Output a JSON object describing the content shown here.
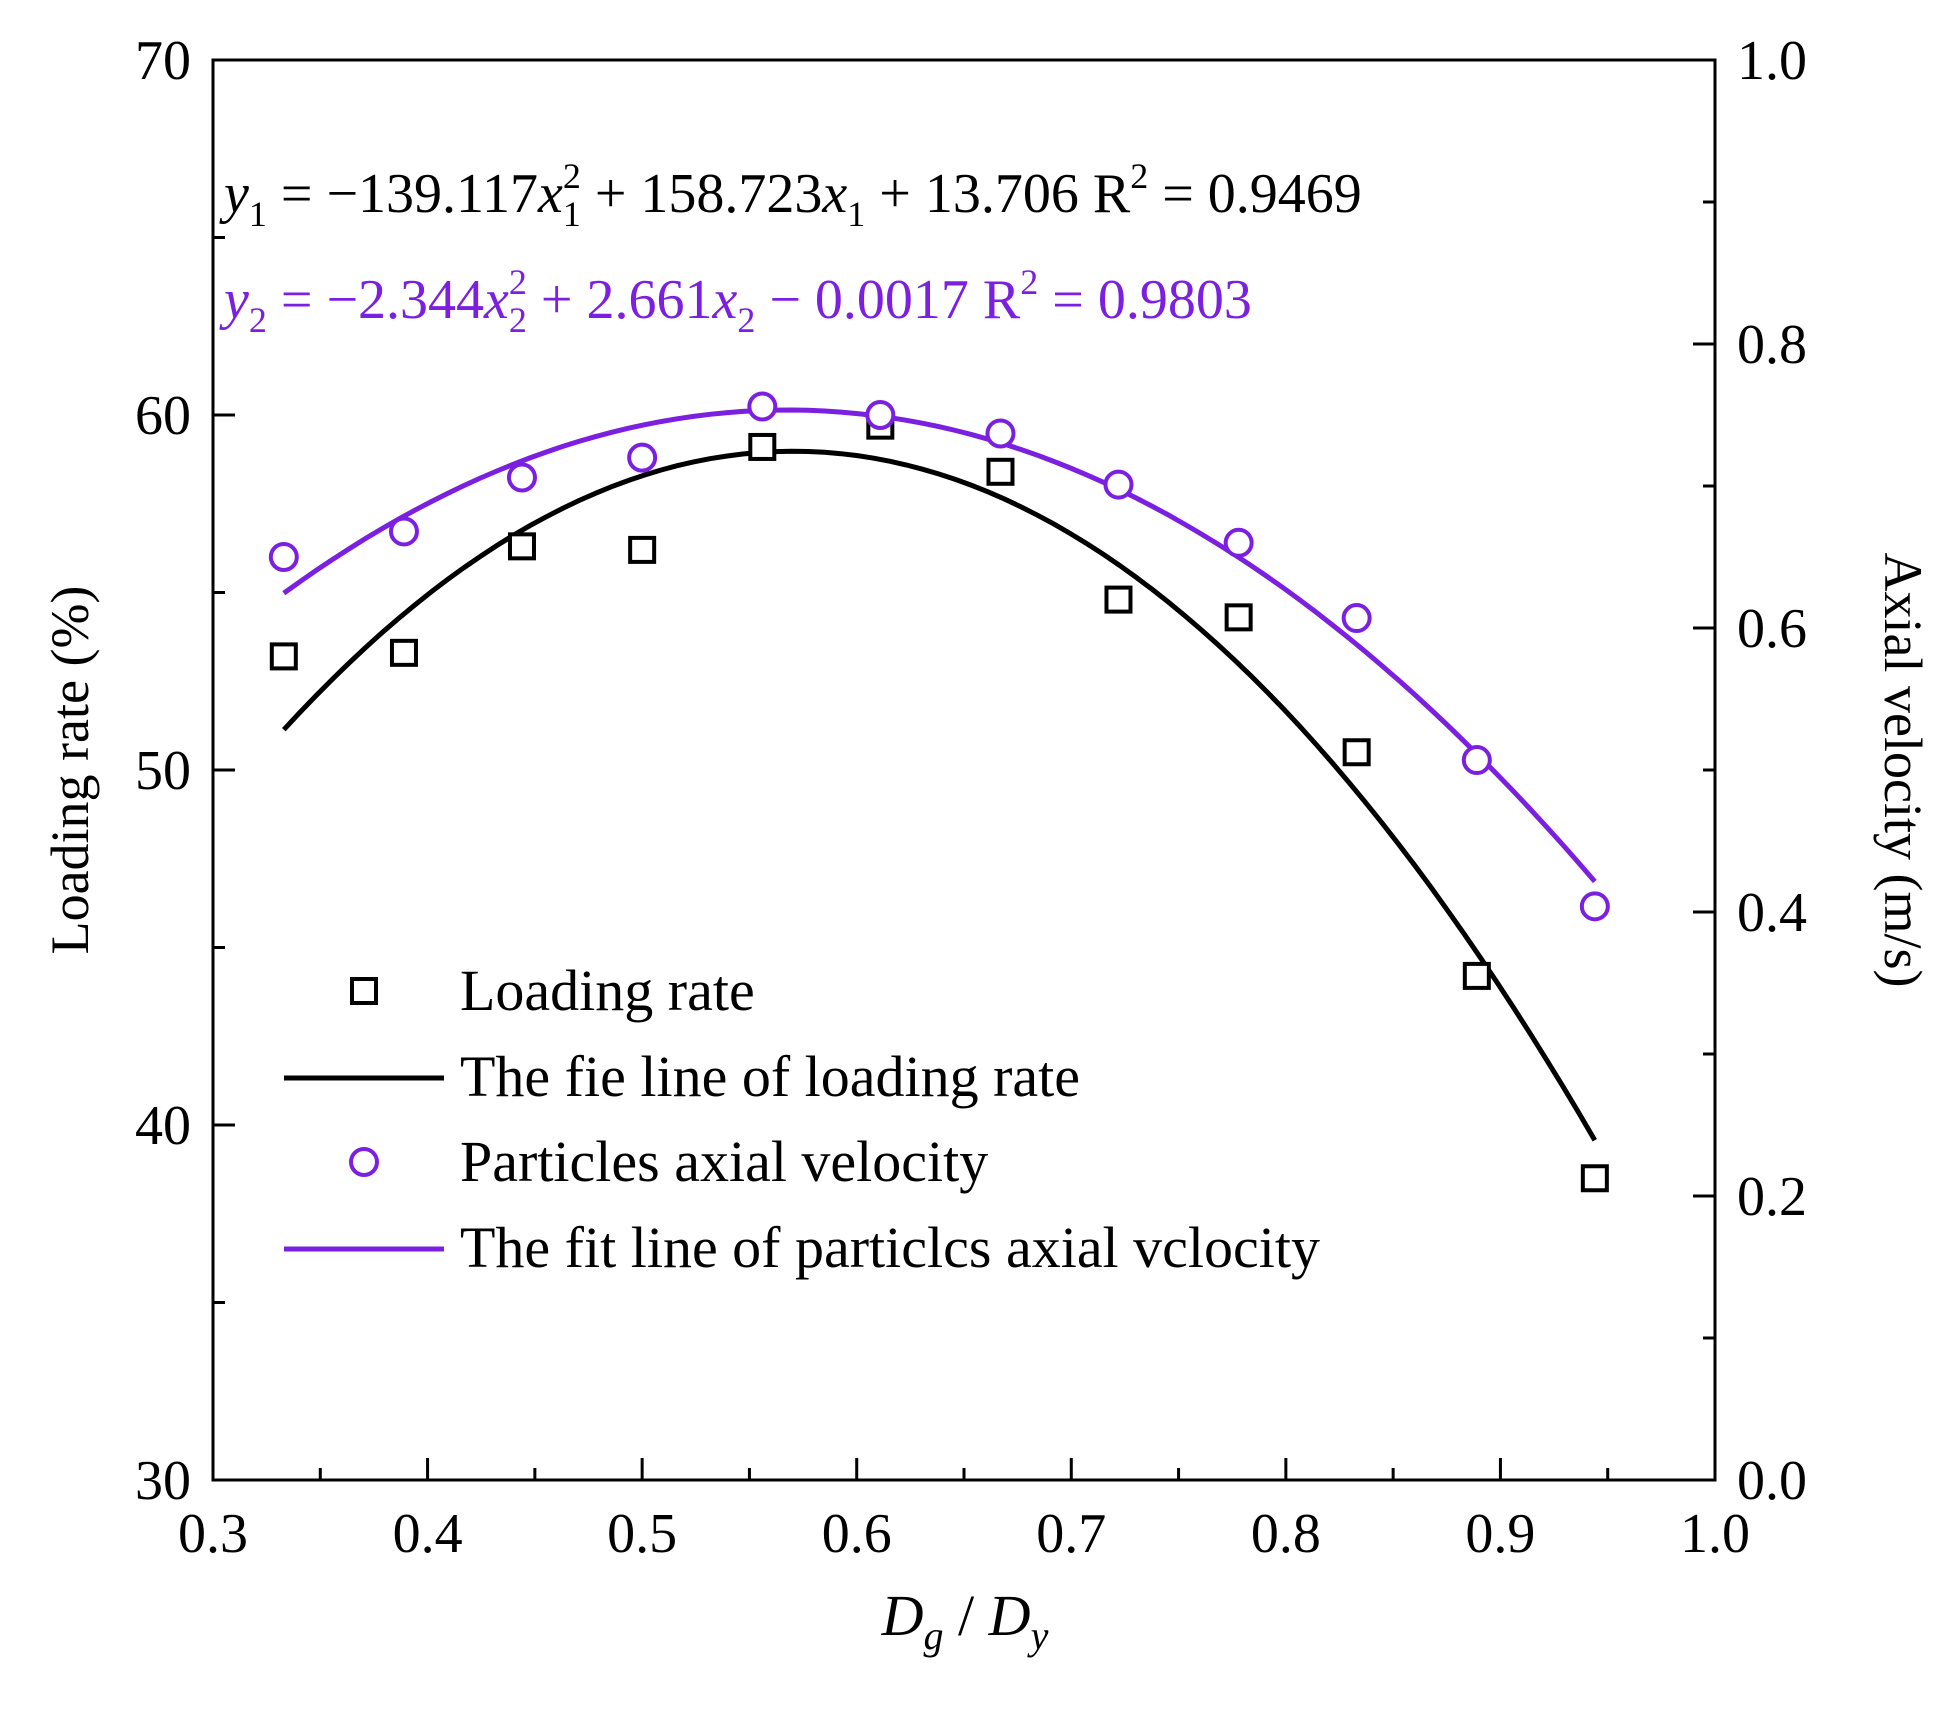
{
  "chart_data": {
    "type": "scatter",
    "title": "",
    "xlabel_parts": {
      "main": "D",
      "sub1": "g",
      "slash": " / ",
      "main2": "D",
      "sub2": "y"
    },
    "ylabel_left": "Loading rate (%)",
    "ylabel_right": "Axial velocity (m/s)",
    "xlim": [
      0.3,
      1.0
    ],
    "ylim_left": [
      30,
      70
    ],
    "ylim_right": [
      0.0,
      1.0
    ],
    "x_ticks": [
      0.3,
      0.4,
      0.5,
      0.6,
      0.7,
      0.8,
      0.9,
      1.0
    ],
    "x_tick_labels": [
      "0.3",
      "0.4",
      "0.5",
      "0.6",
      "0.7",
      "0.8",
      "0.9",
      "1.0"
    ],
    "y_left_ticks": [
      30,
      40,
      50,
      60,
      70
    ],
    "y_left_tick_labels": [
      "30",
      "40",
      "50",
      "60",
      "70"
    ],
    "y_right_ticks": [
      0.0,
      0.2,
      0.4,
      0.6,
      0.8,
      1.0
    ],
    "y_right_tick_labels": [
      "0.0",
      "0.2",
      "0.4",
      "0.6",
      "0.8",
      "1.0"
    ],
    "series": [
      {
        "name": "Loading rate",
        "axis": "left",
        "marker": "square",
        "color": "#000000",
        "x": [
          0.333,
          0.389,
          0.444,
          0.5,
          0.556,
          0.611,
          0.667,
          0.722,
          0.778,
          0.833,
          0.889,
          0.944
        ],
        "y": [
          53.2,
          53.3,
          56.3,
          56.2,
          59.1,
          59.7,
          58.4,
          54.8,
          54.3,
          50.5,
          44.2,
          38.5
        ]
      },
      {
        "name": "Particles axial velocity",
        "axis": "right",
        "marker": "circle",
        "color": "#7B1FE0",
        "x": [
          0.333,
          0.389,
          0.444,
          0.5,
          0.556,
          0.611,
          0.667,
          0.722,
          0.778,
          0.833,
          0.889,
          0.944
        ],
        "y": [
          0.65,
          0.668,
          0.706,
          0.72,
          0.756,
          0.75,
          0.737,
          0.701,
          0.66,
          0.607,
          0.507,
          0.404
        ]
      }
    ],
    "fits": [
      {
        "name": "The fie line of loading rate",
        "axis": "left",
        "color": "#000000",
        "a": -139.117,
        "b": 158.723,
        "c": 13.706,
        "x_range": [
          0.333,
          0.944
        ]
      },
      {
        "name": "The fit line of particles axial velocity",
        "axis": "right",
        "color": "#7B1FE0",
        "a": -2.344,
        "b": 2.661,
        "c": -0.0017,
        "x_range": [
          0.333,
          0.944
        ]
      }
    ],
    "equations": [
      {
        "color": "#000000",
        "y": "y",
        "ysub": "1",
        "t1": " = −139.117",
        "xa": "x",
        "xasup": "2",
        "xasub": "1",
        "t2": " + 158.723",
        "xb": "x",
        "xbsub": "1",
        "t3": " + 13.706  R",
        "rsup": "2",
        "t4": " = 0.9469"
      },
      {
        "color": "#7B1FE0",
        "y": "y",
        "ysub": "2",
        "t1": " = −2.344",
        "xa": "x",
        "xasup": "2",
        "xasub": "2",
        "t2": " + 2.661",
        "xb": "x",
        "xbsub": "2",
        "t3": " − 0.0017  R",
        "rsup": "2",
        "t4": " = 0.9803"
      }
    ],
    "legend": {
      "position": "lower-left",
      "entries": [
        {
          "label": "Loading rate",
          "kind": "square",
          "color": "#000000"
        },
        {
          "label": "The fie line of loading rate",
          "kind": "line",
          "color": "#000000"
        },
        {
          "label": "Particles axial velocity",
          "kind": "circle",
          "color": "#7B1FE0"
        },
        {
          "label": "The fit line of particlcs axial vclocity",
          "kind": "line",
          "color": "#7B1FE0"
        }
      ]
    },
    "grid": false
  }
}
